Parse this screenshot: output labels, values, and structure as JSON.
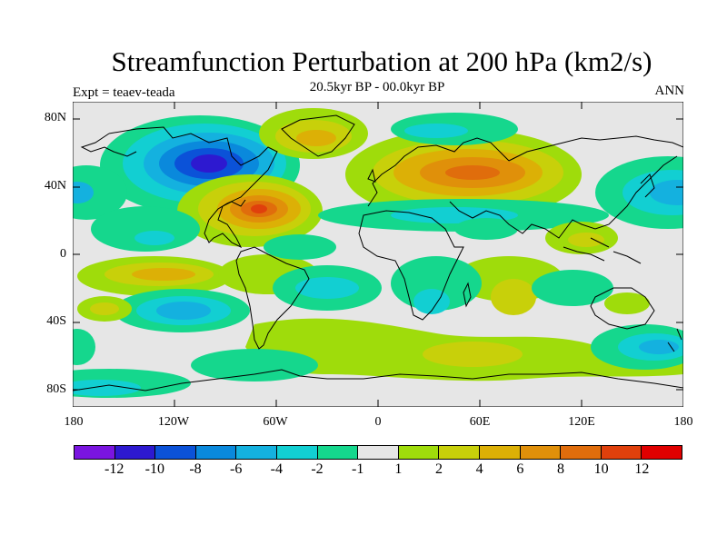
{
  "header": {
    "title": "Streamfunction Perturbation at 200 hPa (km2/s)",
    "subtitle": "20.5kyr BP - 00.0kyr BP",
    "left": "Expt = teaev-teada",
    "right": "ANN"
  },
  "axes": {
    "y_ticks": [
      "80N",
      "40N",
      "0",
      "40S",
      "80S"
    ],
    "x_ticks": [
      "180",
      "120W",
      "60W",
      "0",
      "60E",
      "120E",
      "180"
    ]
  },
  "colorbar": {
    "colors": [
      "#7a15e0",
      "#2d19d0",
      "#0b52d8",
      "#0a89dc",
      "#14b1df",
      "#12cfd2",
      "#15d78d",
      "#e6e6e6",
      "#9fdc0b",
      "#c8d00a",
      "#dcb006",
      "#e0900a",
      "#e06d0c",
      "#e0400c",
      "#e00000"
    ],
    "labels": [
      "-12",
      "-10",
      "-8",
      "-6",
      "-4",
      "-2",
      "-1",
      "1",
      "2",
      "4",
      "6",
      "8",
      "10",
      "12"
    ]
  }
}
